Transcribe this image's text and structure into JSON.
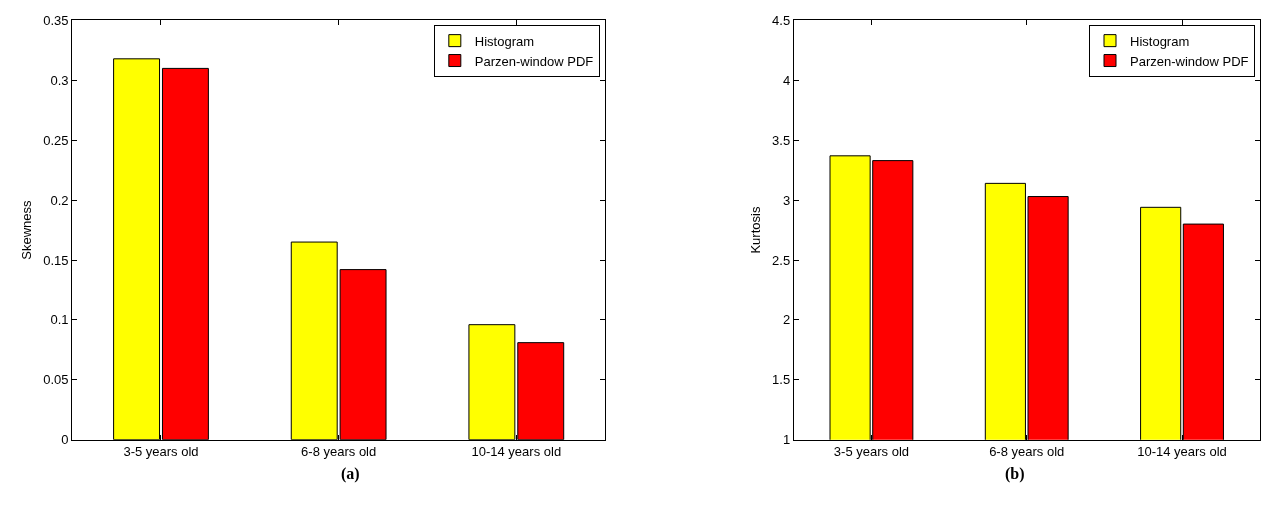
{
  "chart_data": [
    {
      "type": "bar",
      "ylabel": "Skewness",
      "categories": [
        "3-5 years old",
        "6-8 years old",
        "10-14 years old"
      ],
      "series": [
        {
          "name": "Histogram",
          "color": "#ffff00",
          "values": [
            0.318,
            0.165,
            0.096
          ]
        },
        {
          "name": "Parzen-window PDF",
          "color": "#ff0000",
          "values": [
            0.31,
            0.142,
            0.081
          ]
        }
      ],
      "ylim": [
        0,
        0.35
      ],
      "yticks": [
        0,
        0.05,
        0.1,
        0.15,
        0.2,
        0.25,
        0.3,
        0.35
      ],
      "legend": "top right",
      "annotations": [
        "(a)"
      ]
    },
    {
      "type": "bar",
      "ylabel": "Kurtosis",
      "categories": [
        "3-5 years old",
        "6-8 years old",
        "10-14 years old"
      ],
      "series": [
        {
          "name": "Histogram",
          "color": "#ffff00",
          "values": [
            3.37,
            3.14,
            2.94
          ]
        },
        {
          "name": "Parzen-window PDF",
          "color": "#ff0000",
          "values": [
            3.33,
            3.03,
            2.8
          ]
        }
      ],
      "ylim": [
        1,
        4.5
      ],
      "yticks": [
        1,
        1.5,
        2,
        2.5,
        3,
        3.5,
        4,
        4.5
      ],
      "legend": "top right",
      "annotations": [
        "(b)"
      ]
    }
  ]
}
